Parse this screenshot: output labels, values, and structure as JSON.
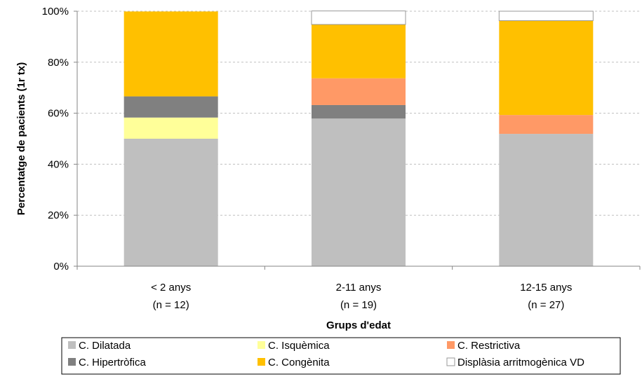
{
  "chart_data": {
    "type": "bar",
    "stacked": true,
    "title": "",
    "xlabel": "Grups d'edat",
    "ylabel": "Percentatge de pacients (1r tx)",
    "ylim": [
      0,
      100
    ],
    "yticks": [
      "0%",
      "20%",
      "40%",
      "60%",
      "80%",
      "100%"
    ],
    "grid": true,
    "legend_position": "bottom",
    "categories": [
      [
        "< 2 anys",
        "(n = 12)"
      ],
      [
        "2-11 anys",
        "(n = 19)"
      ],
      [
        "12-15 anys",
        "(n = 27)"
      ]
    ],
    "series": [
      {
        "name": "C. Dilatada",
        "color": "#bfbfbf",
        "values": [
          50.0,
          57.9,
          51.9
        ]
      },
      {
        "name": "C. Isquèmica",
        "color": "#ffff99",
        "values": [
          8.3,
          0,
          0
        ]
      },
      {
        "name": "C. Hipertròfica",
        "color": "#808080",
        "values": [
          8.3,
          5.3,
          0
        ]
      },
      {
        "name": "C. Restrictiva",
        "color": "#ff9966",
        "values": [
          0,
          10.5,
          7.4
        ]
      },
      {
        "name": "C. Congènita",
        "color": "#ffc000",
        "values": [
          33.3,
          21.1,
          37.0
        ]
      },
      {
        "name": "Displàsia arritmogènica VD",
        "color": "#ffffff",
        "values": [
          0,
          5.3,
          3.7
        ]
      }
    ],
    "legend_order": [
      "C. Dilatada",
      "C. Isquèmica",
      "C. Restrictiva",
      "C. Hipertròfica",
      "C. Congènita",
      "Displàsia arritmogènica VD"
    ]
  }
}
